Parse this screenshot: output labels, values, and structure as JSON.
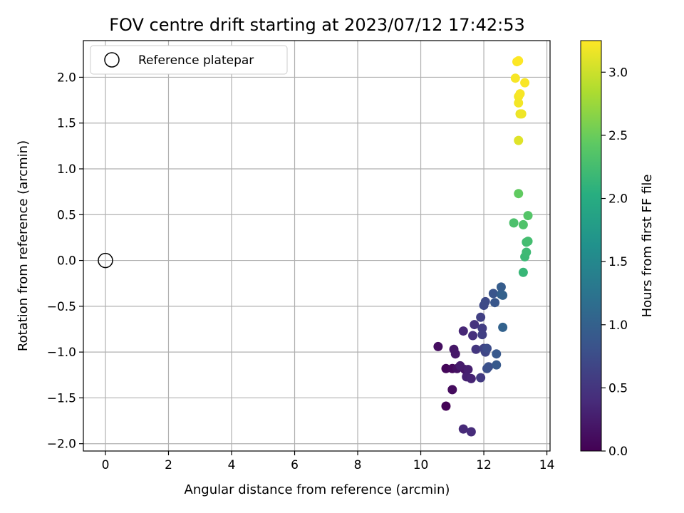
{
  "chart_data": {
    "type": "scatter",
    "title": "FOV centre drift starting at 2023/07/12 17:42:53",
    "xlabel": "Angular distance from reference (arcmin)",
    "ylabel": "Rotation from reference (arcmin)",
    "xlim": [
      -0.7,
      14.1
    ],
    "ylim": [
      -2.08,
      2.4
    ],
    "xticks": [
      0,
      2,
      4,
      6,
      8,
      10,
      12,
      14
    ],
    "yticks": [
      -2.0,
      -1.5,
      -1.0,
      -0.5,
      0.0,
      0.5,
      1.0,
      1.5,
      2.0
    ],
    "xtick_labels": [
      "0",
      "2",
      "4",
      "6",
      "8",
      "10",
      "12",
      "14"
    ],
    "ytick_labels": [
      "−2.0",
      "−1.5",
      "−1.0",
      "−0.5",
      "0.0",
      "0.5",
      "1.0",
      "1.5",
      "2.0"
    ],
    "grid": true,
    "legend": {
      "position": "top-left",
      "label": "Reference platepar"
    },
    "reference_point": {
      "x": 0,
      "y": 0
    },
    "colorbar": {
      "label": "Hours from first FF file",
      "colormap": "viridis",
      "range": [
        0.0,
        3.25
      ],
      "ticks": [
        0.0,
        0.5,
        1.0,
        1.5,
        2.0,
        2.5,
        3.0
      ],
      "tick_labels": [
        "0.0",
        "0.5",
        "1.0",
        "1.5",
        "2.0",
        "2.5",
        "3.0"
      ]
    },
    "points": [
      {
        "x": 10.8,
        "y": -1.59,
        "c": 0.02
      },
      {
        "x": 10.8,
        "y": -1.18,
        "c": 0.05
      },
      {
        "x": 11.0,
        "y": -1.18,
        "c": 0.08
      },
      {
        "x": 11.0,
        "y": -1.41,
        "c": 0.1
      },
      {
        "x": 10.55,
        "y": -0.94,
        "c": 0.12
      },
      {
        "x": 11.15,
        "y": -1.18,
        "c": 0.15
      },
      {
        "x": 11.4,
        "y": -1.19,
        "c": 0.18
      },
      {
        "x": 11.05,
        "y": -0.97,
        "c": 0.2
      },
      {
        "x": 11.1,
        "y": -1.02,
        "c": 0.22
      },
      {
        "x": 11.25,
        "y": -1.15,
        "c": 0.25
      },
      {
        "x": 11.5,
        "y": -1.19,
        "c": 0.28
      },
      {
        "x": 11.45,
        "y": -1.27,
        "c": 0.3
      },
      {
        "x": 11.6,
        "y": -1.29,
        "c": 0.32
      },
      {
        "x": 11.35,
        "y": -0.77,
        "c": 0.35
      },
      {
        "x": 11.35,
        "y": -1.84,
        "c": 0.38
      },
      {
        "x": 11.6,
        "y": -1.87,
        "c": 0.4
      },
      {
        "x": 11.65,
        "y": -0.82,
        "c": 0.45
      },
      {
        "x": 11.7,
        "y": -0.7,
        "c": 0.48
      },
      {
        "x": 11.75,
        "y": -0.97,
        "c": 0.5
      },
      {
        "x": 11.9,
        "y": -1.28,
        "c": 0.55
      },
      {
        "x": 11.95,
        "y": -0.74,
        "c": 0.58
      },
      {
        "x": 11.95,
        "y": -0.81,
        "c": 0.6
      },
      {
        "x": 11.9,
        "y": -0.62,
        "c": 0.62
      },
      {
        "x": 12.0,
        "y": -0.96,
        "c": 0.65
      },
      {
        "x": 12.05,
        "y": -1.0,
        "c": 0.68
      },
      {
        "x": 12.0,
        "y": -0.49,
        "c": 0.7
      },
      {
        "x": 12.05,
        "y": -0.45,
        "c": 0.72
      },
      {
        "x": 12.1,
        "y": -0.96,
        "c": 0.75
      },
      {
        "x": 12.1,
        "y": -1.18,
        "c": 0.78
      },
      {
        "x": 12.15,
        "y": -1.16,
        "c": 0.8
      },
      {
        "x": 12.3,
        "y": -0.36,
        "c": 0.85
      },
      {
        "x": 12.35,
        "y": -0.46,
        "c": 0.88
      },
      {
        "x": 12.4,
        "y": -1.02,
        "c": 0.9
      },
      {
        "x": 12.4,
        "y": -1.14,
        "c": 0.92
      },
      {
        "x": 12.55,
        "y": -0.29,
        "c": 0.95
      },
      {
        "x": 12.55,
        "y": -0.37,
        "c": 0.98
      },
      {
        "x": 12.6,
        "y": -0.38,
        "c": 1.0
      },
      {
        "x": 12.6,
        "y": -0.73,
        "c": 1.02
      },
      {
        "x": 13.25,
        "y": -0.13,
        "c": 2.15
      },
      {
        "x": 13.3,
        "y": 0.04,
        "c": 2.18
      },
      {
        "x": 13.35,
        "y": 0.09,
        "c": 2.2
      },
      {
        "x": 13.35,
        "y": 0.2,
        "c": 2.22
      },
      {
        "x": 13.4,
        "y": 0.21,
        "c": 2.25
      },
      {
        "x": 12.95,
        "y": 0.41,
        "c": 2.3
      },
      {
        "x": 13.25,
        "y": 0.39,
        "c": 2.33
      },
      {
        "x": 13.4,
        "y": 0.49,
        "c": 2.36
      },
      {
        "x": 13.1,
        "y": 0.73,
        "c": 2.45
      },
      {
        "x": 13.1,
        "y": 1.31,
        "c": 3.1
      },
      {
        "x": 13.15,
        "y": 1.6,
        "c": 3.15
      },
      {
        "x": 13.2,
        "y": 1.6,
        "c": 3.18
      },
      {
        "x": 13.1,
        "y": 1.72,
        "c": 3.2
      },
      {
        "x": 13.1,
        "y": 1.79,
        "c": 3.2
      },
      {
        "x": 13.15,
        "y": 1.82,
        "c": 3.22
      },
      {
        "x": 13.0,
        "y": 1.99,
        "c": 3.22
      },
      {
        "x": 13.3,
        "y": 1.94,
        "c": 3.23
      },
      {
        "x": 13.05,
        "y": 2.17,
        "c": 3.24
      },
      {
        "x": 13.1,
        "y": 2.18,
        "c": 3.25
      }
    ]
  }
}
